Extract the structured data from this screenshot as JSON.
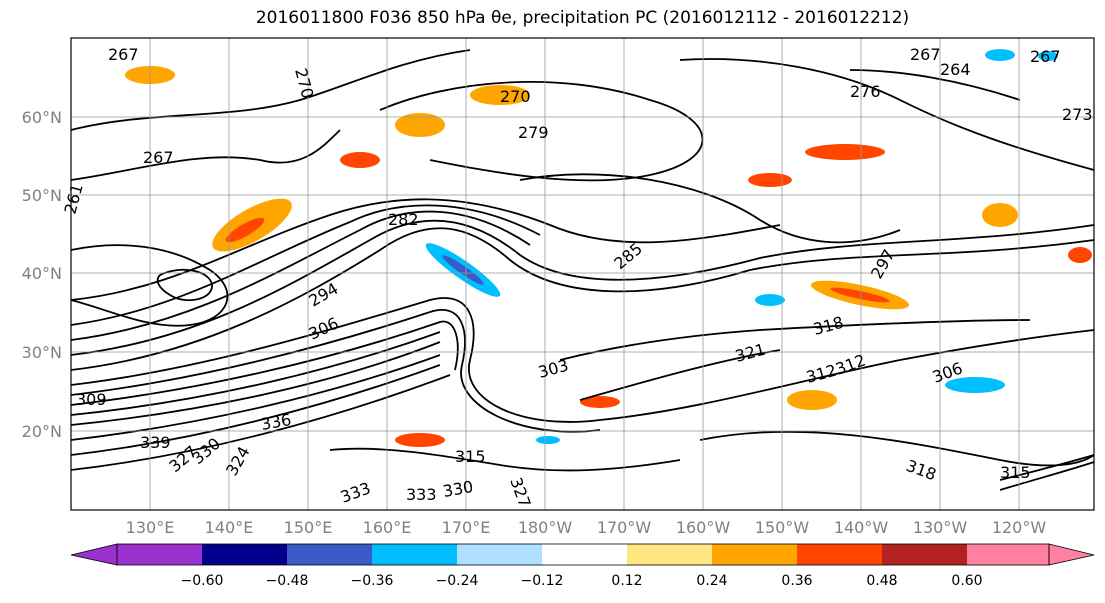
{
  "title": "2016011800 F036 850 hPa θe, precipitation PC (2016012112 - 2016012212)",
  "map": {
    "lat_labels": [
      "60°N",
      "50°N",
      "40°N",
      "30°N",
      "20°N"
    ],
    "lon_labels": [
      "130°E",
      "140°E",
      "150°E",
      "160°E",
      "170°E",
      "180°W",
      "170°W",
      "160°W",
      "150°W",
      "140°W",
      "130°W",
      "120°W"
    ],
    "contour_labels": [
      "267",
      "270",
      "279",
      "261",
      "267",
      "270",
      "282",
      "285",
      "294",
      "297",
      "306",
      "303",
      "315",
      "318",
      "321",
      "306",
      "309",
      "312",
      "315",
      "318",
      "324",
      "327",
      "330",
      "333",
      "336",
      "339",
      "333",
      "330",
      "327",
      "312",
      "264",
      "267",
      "276",
      "273",
      "267"
    ],
    "shading_note": ""
  },
  "colorbar": {
    "tick_labels": [
      "−0.60",
      "−0.48",
      "−0.36",
      "−0.24",
      "−0.12",
      "0.12",
      "0.24",
      "0.36",
      "0.48",
      "0.60"
    ],
    "colors": [
      "#9932cc",
      "#00008b",
      "#3a5bc8",
      "#00bfff",
      "#b0e0ff",
      "#ffffff",
      "#ffe680",
      "#ffa500",
      "#ff4500",
      "#b22222",
      "#ff80a0"
    ]
  }
}
